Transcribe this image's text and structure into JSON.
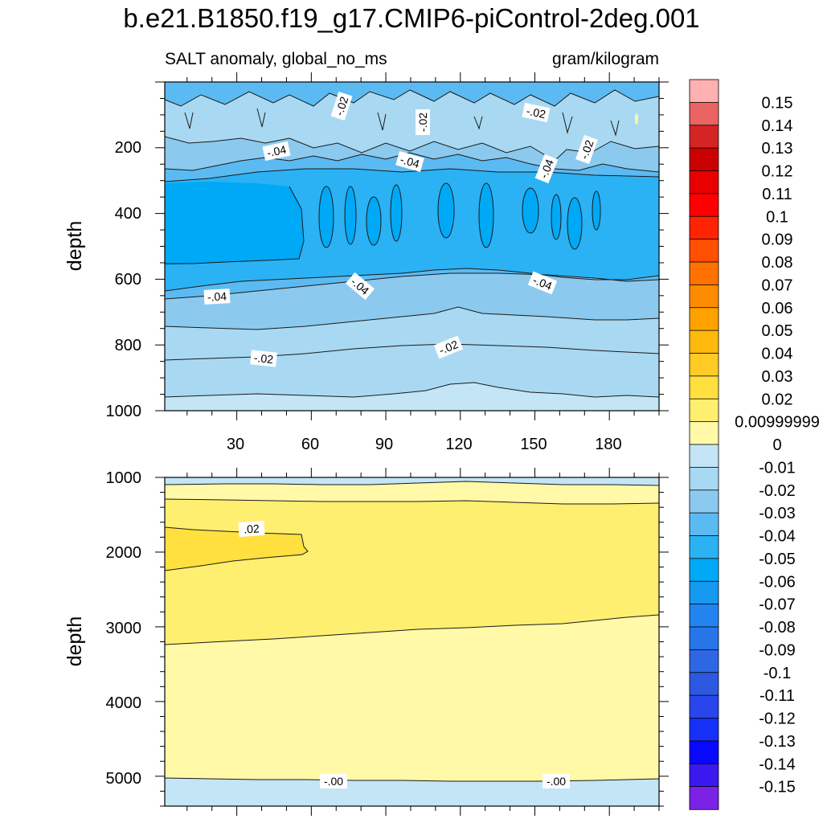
{
  "chart_data": {
    "type": "contour",
    "title": "b.e21.B1850.f19_g17.CMIP6-piControl-2deg.001",
    "subtitle_left": "SALT anomaly, global_no_ms",
    "subtitle_right": "gram/kilogram",
    "ylabel": "depth",
    "xlim": [
      1,
      200
    ],
    "x_ticks": [
      "30",
      "60",
      "90",
      "120",
      "150",
      "180"
    ],
    "top_panel": {
      "ylim": [
        0,
        1000
      ],
      "y_ticks": [
        "200",
        "400",
        "600",
        "800",
        "1000"
      ],
      "contour_labels": [
        "-.02",
        "-.02",
        "-.02",
        "-.02",
        "-.04",
        "-.04",
        "-.04",
        "-.04",
        "-.04",
        "-.04",
        "-.02",
        "-.02"
      ]
    },
    "bottom_panel": {
      "ylim": [
        1000,
        5400
      ],
      "y_ticks": [
        "1000",
        "2000",
        "3000",
        "4000",
        "5000"
      ],
      "contour_labels": [
        ".02",
        "-.00",
        "-.00"
      ]
    },
    "colorbar": {
      "labels": [
        "0.15",
        "0.14",
        "0.13",
        "0.12",
        "0.11",
        "0.1",
        "0.09",
        "0.08",
        "0.07",
        "0.06",
        "0.05",
        "0.04",
        "0.03",
        "0.02",
        "0.00999999",
        "0",
        "-0.01",
        "-0.02",
        "-0.03",
        "-0.04",
        "-0.05",
        "-0.06",
        "-0.07",
        "-0.08",
        "-0.09",
        "-0.1",
        "-0.11",
        "-0.12",
        "-0.13",
        "-0.14",
        "-0.15"
      ],
      "colors": [
        "#ffb0b0",
        "#ea6464",
        "#d42424",
        "#cb0000",
        "#e80000",
        "#ff0000",
        "#ff2400",
        "#ff4f00",
        "#ff7200",
        "#ff8c00",
        "#ffa200",
        "#ffba0d",
        "#ffcb24",
        "#ffe03e",
        "#ffef70",
        "#fff9a8",
        "#c4e5f5",
        "#a9d9f2",
        "#8cc9ee",
        "#5cbaf2",
        "#2ab2f5",
        "#00a9f5",
        "#1598f0",
        "#2284ee",
        "#2675e9",
        "#2e67e4",
        "#2d58e0",
        "#2945ec",
        "#1630f6",
        "#0808fe",
        "#3b18f0",
        "#7b22e6"
      ]
    }
  }
}
